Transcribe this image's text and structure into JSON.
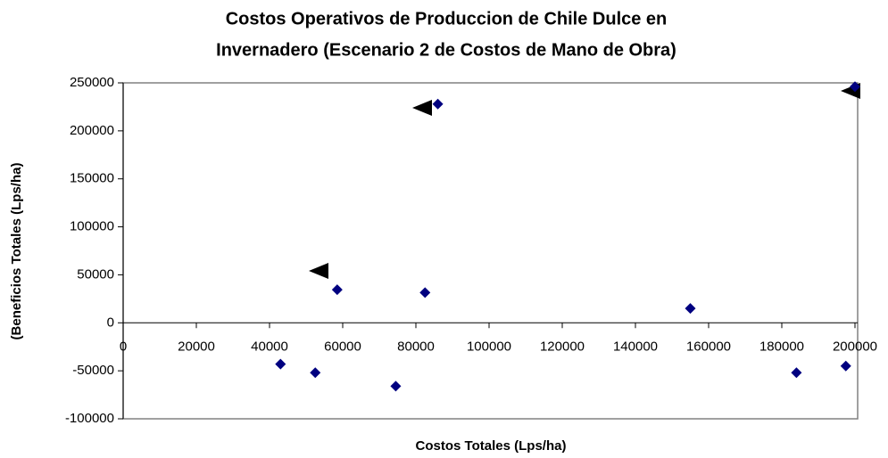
{
  "chart_data": {
    "type": "scatter",
    "title": [
      "Costos Operativos de Produccion de Chile Dulce en",
      "Invernadero (Escenario 2 de Costos de Mano de Obra)"
    ],
    "x_label": "Costos Totales (Lps/ha)",
    "y_label": "(Beneficios Totales (Lps/ha)",
    "x": [
      43000,
      52500,
      58500,
      74500,
      82500,
      86000,
      155000,
      184000,
      197500,
      200000
    ],
    "values": [
      -43000,
      -52000,
      34500,
      -66000,
      31500,
      228000,
      15000,
      -52000,
      -45000,
      246000
    ],
    "color": "#000080",
    "xlim": [
      0,
      200000
    ],
    "xticks": [
      0,
      20000,
      40000,
      60000,
      80000,
      100000,
      120000,
      140000,
      160000,
      180000,
      200000
    ],
    "ylim": [
      -100000,
      250000
    ],
    "yticks": [
      -100000,
      -50000,
      0,
      50000,
      100000,
      150000,
      200000,
      250000
    ]
  }
}
